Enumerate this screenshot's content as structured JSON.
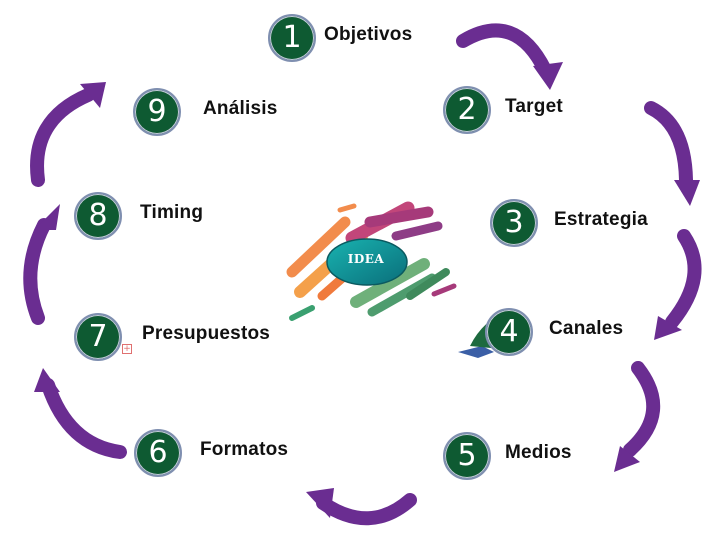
{
  "diagram": {
    "center_label": "IDEA",
    "arrow_color": "#6a2d91",
    "badge_color": "#0e5a32",
    "steps": [
      {
        "number": "1",
        "label": "Objetivos"
      },
      {
        "number": "2",
        "label": "Target"
      },
      {
        "number": "3",
        "label": "Estrategia"
      },
      {
        "number": "4",
        "label": "Canales"
      },
      {
        "number": "5",
        "label": "Medios"
      },
      {
        "number": "6",
        "label": "Formatos"
      },
      {
        "number": "7",
        "label": "Presupuestos"
      },
      {
        "number": "8",
        "label": "Timing"
      },
      {
        "number": "9",
        "label": "Análisis"
      }
    ]
  }
}
